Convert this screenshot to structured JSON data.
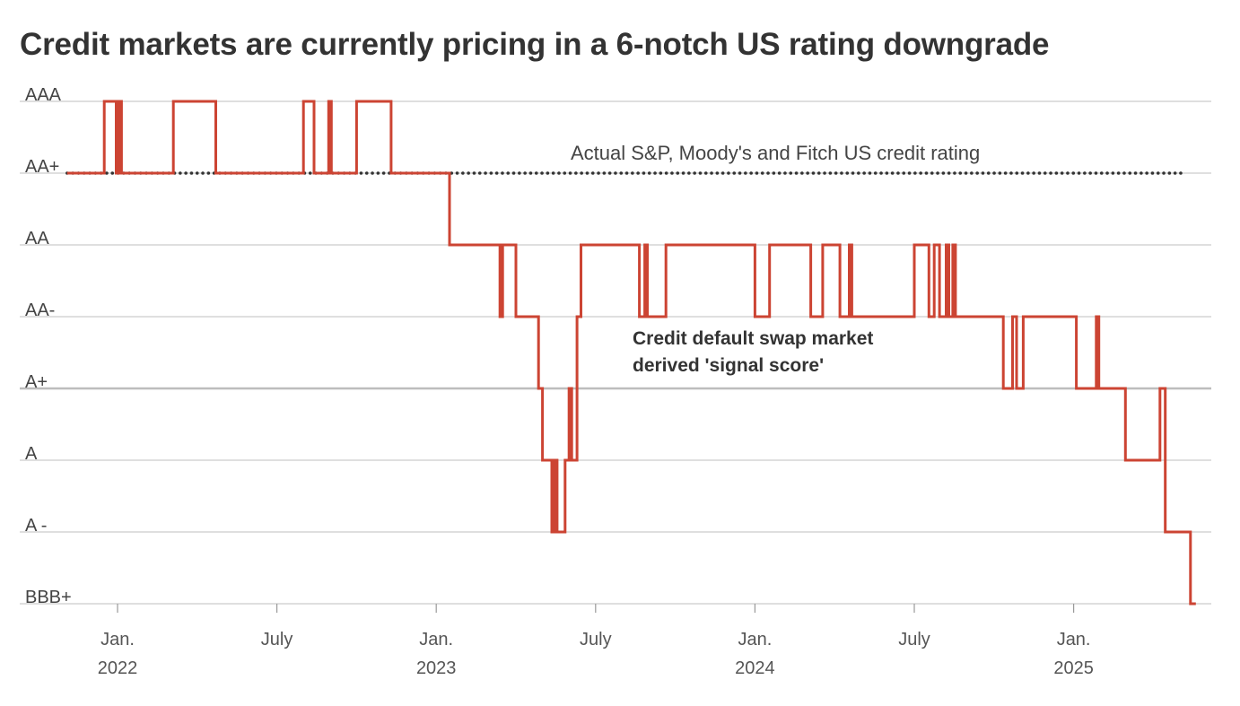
{
  "chart_data": {
    "type": "line",
    "title": "Credit markets are currently pricing in a 6-notch US rating downgrade",
    "y_levels": [
      "AAA",
      "AA+",
      "AA",
      "AA-",
      "A+",
      "A",
      "A -",
      "BBB+"
    ],
    "x_ticks": [
      {
        "month": "Jan.",
        "year": "2022",
        "t": 0
      },
      {
        "month": "July",
        "year": "",
        "t": 6
      },
      {
        "month": "Jan.",
        "year": "2023",
        "t": 12
      },
      {
        "month": "July",
        "year": "",
        "t": 18
      },
      {
        "month": "Jan.",
        "year": "2024",
        "t": 24
      },
      {
        "month": "July",
        "year": "",
        "t": 30
      },
      {
        "month": "Jan.",
        "year": "2025",
        "t": 36
      }
    ],
    "xlim": [
      -1.95,
      41.1
    ],
    "annotations": {
      "actual_rating": "Actual S&P, Moody's and Fitch US credit rating",
      "signal_score": [
        "Credit default swap market",
        "derived 'signal score'"
      ]
    },
    "series": [
      {
        "name": "Actual S&P, Moody's and Fitch US credit rating",
        "style": "dotted",
        "color": "#333333",
        "points": [
          [
            -1.9,
            1
          ],
          [
            40.1,
            1
          ]
        ]
      },
      {
        "name": "Credit default swap market derived 'signal score'",
        "style": "step",
        "color": "#cc4433",
        "points": [
          [
            -1.9,
            1
          ],
          [
            -0.5,
            1
          ],
          [
            -0.5,
            0
          ],
          [
            -0.05,
            0
          ],
          [
            -0.05,
            1
          ],
          [
            0.05,
            1
          ],
          [
            0.05,
            0
          ],
          [
            0.15,
            0
          ],
          [
            0.15,
            1
          ],
          [
            2.1,
            1
          ],
          [
            2.1,
            0
          ],
          [
            3.7,
            0
          ],
          [
            3.7,
            1
          ],
          [
            7.0,
            1
          ],
          [
            7.0,
            0
          ],
          [
            7.4,
            0
          ],
          [
            7.4,
            1
          ],
          [
            7.95,
            1
          ],
          [
            7.95,
            0
          ],
          [
            8.05,
            0
          ],
          [
            8.05,
            1
          ],
          [
            9.0,
            1
          ],
          [
            9.0,
            0
          ],
          [
            10.3,
            0
          ],
          [
            10.3,
            1
          ],
          [
            12.5,
            1
          ],
          [
            12.5,
            2
          ],
          [
            14.4,
            2
          ],
          [
            14.4,
            3
          ],
          [
            14.5,
            3
          ],
          [
            14.5,
            2
          ],
          [
            15.0,
            2
          ],
          [
            15.0,
            3
          ],
          [
            15.85,
            3
          ],
          [
            15.85,
            4
          ],
          [
            16.0,
            4
          ],
          [
            16.0,
            5
          ],
          [
            16.35,
            5
          ],
          [
            16.35,
            6
          ],
          [
            16.45,
            6
          ],
          [
            16.45,
            5
          ],
          [
            16.55,
            5
          ],
          [
            16.55,
            6
          ],
          [
            16.85,
            6
          ],
          [
            16.85,
            5
          ],
          [
            17.0,
            5
          ],
          [
            17.0,
            4
          ],
          [
            17.1,
            4
          ],
          [
            17.1,
            5
          ],
          [
            17.3,
            5
          ],
          [
            17.3,
            3
          ],
          [
            17.45,
            3
          ],
          [
            17.45,
            2
          ],
          [
            19.65,
            2
          ],
          [
            19.65,
            3
          ],
          [
            19.85,
            3
          ],
          [
            19.85,
            2
          ],
          [
            19.95,
            2
          ],
          [
            19.95,
            3
          ],
          [
            20.65,
            3
          ],
          [
            20.65,
            2
          ],
          [
            24.0,
            2
          ],
          [
            24.0,
            3
          ],
          [
            24.55,
            3
          ],
          [
            24.55,
            2
          ],
          [
            26.1,
            2
          ],
          [
            26.1,
            3
          ],
          [
            26.55,
            3
          ],
          [
            26.55,
            2
          ],
          [
            27.2,
            2
          ],
          [
            27.2,
            3
          ],
          [
            27.55,
            3
          ],
          [
            27.55,
            2
          ],
          [
            27.65,
            2
          ],
          [
            27.65,
            3
          ],
          [
            30.0,
            3
          ],
          [
            30.0,
            2
          ],
          [
            30.55,
            2
          ],
          [
            30.55,
            3
          ],
          [
            30.75,
            3
          ],
          [
            30.75,
            2
          ],
          [
            30.95,
            2
          ],
          [
            30.95,
            3
          ],
          [
            31.2,
            3
          ],
          [
            31.2,
            2
          ],
          [
            31.3,
            2
          ],
          [
            31.3,
            3
          ],
          [
            31.45,
            3
          ],
          [
            31.45,
            2
          ],
          [
            31.55,
            2
          ],
          [
            31.55,
            3
          ],
          [
            33.35,
            3
          ],
          [
            33.35,
            4
          ],
          [
            33.7,
            4
          ],
          [
            33.7,
            3
          ],
          [
            33.85,
            3
          ],
          [
            33.85,
            4
          ],
          [
            34.1,
            4
          ],
          [
            34.1,
            3
          ],
          [
            36.1,
            3
          ],
          [
            36.1,
            4
          ],
          [
            36.85,
            4
          ],
          [
            36.85,
            3
          ],
          [
            36.95,
            3
          ],
          [
            36.95,
            4
          ],
          [
            37.95,
            4
          ],
          [
            37.95,
            5
          ],
          [
            39.25,
            5
          ],
          [
            39.25,
            4
          ],
          [
            39.45,
            4
          ],
          [
            39.45,
            6
          ],
          [
            40.4,
            6
          ],
          [
            40.4,
            7
          ],
          [
            40.6,
            7
          ]
        ]
      }
    ]
  }
}
